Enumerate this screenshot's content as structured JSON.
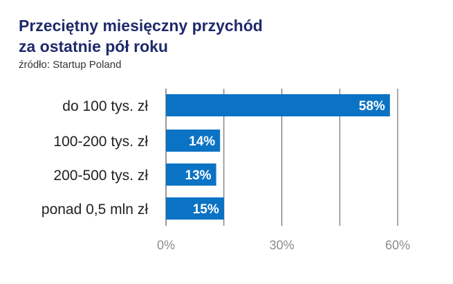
{
  "header": {
    "title_line1": "Przeciętny miesięczny przychód",
    "title_line2": "za ostatnie pół roku",
    "source": "źródło: Startup Poland"
  },
  "colors": {
    "bar": "#0b73c4",
    "label_inside": "#ffffff",
    "grid": "#555555",
    "tick": "#8c8c8c",
    "category": "#222222",
    "title": "#1f2a6b"
  },
  "chart_data": {
    "type": "bar",
    "orientation": "horizontal",
    "title": "Przeciętny miesięczny przychód za ostatnie pół roku",
    "subtitle": "źródło: Startup Poland",
    "categories": [
      "do 100 tys. zł",
      "100-200 tys. zł",
      "200-500 tys. zł",
      "ponad 0,5 mln zł"
    ],
    "values": [
      58,
      14,
      13,
      15
    ],
    "value_labels": [
      "58%",
      "14%",
      "13%",
      "15%"
    ],
    "x_ticks": [
      0,
      30,
      60
    ],
    "x_tick_labels": [
      "0%",
      "30%",
      "60%"
    ],
    "xlim": [
      0,
      60
    ],
    "grid": true,
    "legend": "none"
  }
}
